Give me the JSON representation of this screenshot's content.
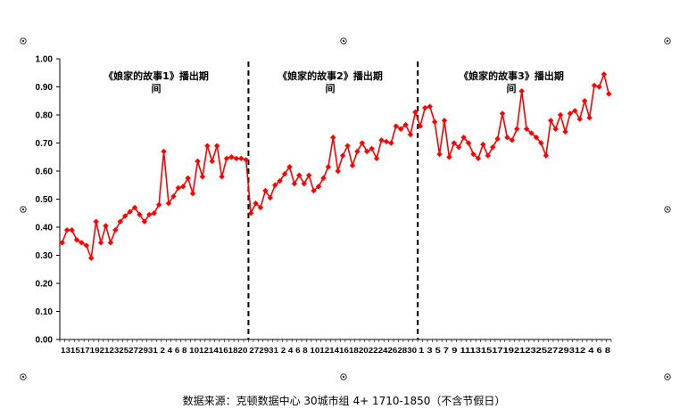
{
  "chart_data": {
    "type": "line",
    "title": "",
    "xlabel": "",
    "ylabel": "",
    "ylim": [
      0,
      1.0
    ],
    "yticks": [
      "0.00",
      "0.10",
      "0.20",
      "0.30",
      "0.40",
      "0.50",
      "0.60",
      "0.70",
      "0.80",
      "0.90",
      "1.00"
    ],
    "grid": false,
    "line_color": "#ff0000",
    "x_tick_text": [
      "13151719212325272931 2  4  6  8 101214161820",
      "272931 2  4  6  8 1012141618202224262830",
      "1  3  5  7  9  11131517192123252729312  4  6  8"
    ],
    "series": [
      {
        "values": [
          0.345,
          0.39,
          0.39,
          0.355,
          0.345,
          0.335,
          0.29,
          0.42,
          0.345,
          0.405,
          0.345,
          0.39,
          0.42,
          0.44,
          0.455,
          0.47,
          0.445,
          0.42,
          0.445,
          0.45,
          0.48,
          0.67,
          0.485,
          0.51,
          0.54,
          0.545,
          0.575,
          0.52,
          0.635,
          0.58,
          0.69,
          0.635,
          0.69,
          0.58,
          0.645,
          0.65,
          0.645,
          0.645,
          0.64,
          0.45,
          0.485,
          0.47,
          0.53,
          0.505,
          0.55,
          0.565,
          0.59,
          0.615,
          0.555,
          0.585,
          0.555,
          0.585,
          0.53,
          0.545,
          0.575,
          0.615,
          0.72,
          0.6,
          0.655,
          0.69,
          0.62,
          0.67,
          0.7,
          0.67,
          0.68,
          0.645,
          0.71,
          0.705,
          0.7,
          0.76,
          0.75,
          0.765,
          0.73,
          0.81,
          0.76,
          0.825,
          0.83,
          0.775,
          0.66,
          0.78,
          0.65,
          0.7,
          0.685,
          0.72,
          0.7,
          0.66,
          0.645,
          0.695,
          0.655,
          0.685,
          0.715,
          0.805,
          0.72,
          0.71,
          0.75,
          0.885,
          0.75,
          0.735,
          0.72,
          0.7,
          0.655,
          0.78,
          0.75,
          0.8,
          0.74,
          0.805,
          0.815,
          0.785,
          0.85,
          0.79,
          0.905,
          0.9,
          0.945,
          0.875
        ]
      }
    ],
    "dividers_after_index": [
      38,
      73
    ],
    "annotations": [
      "《娘家的故事1》播出期间",
      "《娘家的故事2》播出期间",
      "《娘家的故事3》播出期间"
    ]
  },
  "source_note": "数据来源：克顿数据中心 30城市组 4+ 1710-1850（不含节假日）"
}
